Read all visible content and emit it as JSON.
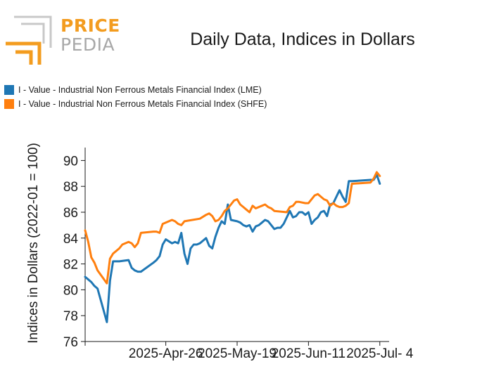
{
  "logo": {
    "word1": "PRICE",
    "word2": "PEDIA",
    "colors": {
      "orange": "#f39c1f",
      "gray": "#c8c8c8"
    }
  },
  "chart_data": {
    "type": "line",
    "title": "Daily Data, Indices in Dollars",
    "ylabel": "Indices in Dollars (2022-01 = 100)",
    "xlabel": "",
    "ylim": [
      76,
      91
    ],
    "yticks": [
      76,
      78,
      80,
      82,
      84,
      86,
      88,
      90
    ],
    "xlim": [
      "2025-03-31",
      "2025-07-07"
    ],
    "xticks": [
      {
        "date": "2025-04-26",
        "label": "2025-Apr-26"
      },
      {
        "date": "2025-05-19",
        "label": "2025-May-19"
      },
      {
        "date": "2025-06-11",
        "label": "2025-Jun-11"
      },
      {
        "date": "2025-07-04",
        "label": "2025-Jul- 4"
      }
    ],
    "legend_position": "top-left",
    "grid": false,
    "series": [
      {
        "name": "I - Value - Industrial Non Ferrous Metals Financial Index (LME)",
        "color": "#1f77b4",
        "points": [
          [
            "2025-03-31",
            81.0
          ],
          [
            "2025-04-01",
            80.8
          ],
          [
            "2025-04-02",
            80.6
          ],
          [
            "2025-04-03",
            80.3
          ],
          [
            "2025-04-04",
            80.1
          ],
          [
            "2025-04-07",
            77.5
          ],
          [
            "2025-04-08",
            80.7
          ],
          [
            "2025-04-09",
            82.2
          ],
          [
            "2025-04-10",
            82.2
          ],
          [
            "2025-04-11",
            82.2
          ],
          [
            "2025-04-14",
            82.3
          ],
          [
            "2025-04-15",
            81.7
          ],
          [
            "2025-04-16",
            81.5
          ],
          [
            "2025-04-17",
            81.4
          ],
          [
            "2025-04-18",
            81.4
          ],
          [
            "2025-04-22",
            82.1
          ],
          [
            "2025-04-23",
            82.3
          ],
          [
            "2025-04-24",
            82.6
          ],
          [
            "2025-04-25",
            83.5
          ],
          [
            "2025-04-26",
            83.9
          ],
          [
            "2025-04-28",
            83.6
          ],
          [
            "2025-04-29",
            83.7
          ],
          [
            "2025-04-30",
            83.6
          ],
          [
            "2025-05-01",
            84.4
          ],
          [
            "2025-05-02",
            82.8
          ],
          [
            "2025-05-03",
            82.0
          ],
          [
            "2025-05-04",
            83.2
          ],
          [
            "2025-05-05",
            83.5
          ],
          [
            "2025-05-06",
            83.5
          ],
          [
            "2025-05-07",
            83.6
          ],
          [
            "2025-05-08",
            83.8
          ],
          [
            "2025-05-09",
            84.0
          ],
          [
            "2025-05-10",
            83.4
          ],
          [
            "2025-05-11",
            83.2
          ],
          [
            "2025-05-12",
            84.1
          ],
          [
            "2025-05-13",
            84.8
          ],
          [
            "2025-05-14",
            85.3
          ],
          [
            "2025-05-15",
            85.1
          ],
          [
            "2025-05-16",
            86.6
          ],
          [
            "2025-05-17",
            85.4
          ],
          [
            "2025-05-19",
            85.3
          ],
          [
            "2025-05-20",
            85.2
          ],
          [
            "2025-05-21",
            85.0
          ],
          [
            "2025-05-22",
            84.9
          ],
          [
            "2025-05-23",
            85.0
          ],
          [
            "2025-05-24",
            84.5
          ],
          [
            "2025-05-25",
            84.9
          ],
          [
            "2025-05-26",
            85.0
          ],
          [
            "2025-05-27",
            85.2
          ],
          [
            "2025-05-28",
            85.4
          ],
          [
            "2025-05-29",
            85.3
          ],
          [
            "2025-05-30",
            85.0
          ],
          [
            "2025-05-31",
            84.7
          ],
          [
            "2025-06-01",
            84.8
          ],
          [
            "2025-06-02",
            84.8
          ],
          [
            "2025-06-03",
            85.1
          ],
          [
            "2025-06-04",
            85.6
          ],
          [
            "2025-06-05",
            86.1
          ],
          [
            "2025-06-06",
            85.6
          ],
          [
            "2025-06-07",
            85.7
          ],
          [
            "2025-06-08",
            86.0
          ],
          [
            "2025-06-09",
            86.0
          ],
          [
            "2025-06-10",
            85.8
          ],
          [
            "2025-06-11",
            86.0
          ],
          [
            "2025-06-12",
            85.1
          ],
          [
            "2025-06-13",
            85.4
          ],
          [
            "2025-06-14",
            85.6
          ],
          [
            "2025-06-15",
            86.0
          ],
          [
            "2025-06-16",
            86.1
          ],
          [
            "2025-06-17",
            85.7
          ],
          [
            "2025-06-18",
            86.6
          ],
          [
            "2025-06-19",
            86.7
          ],
          [
            "2025-06-20",
            87.2
          ],
          [
            "2025-06-21",
            87.7
          ],
          [
            "2025-06-22",
            87.2
          ],
          [
            "2025-06-23",
            86.8
          ],
          [
            "2025-06-24",
            88.4
          ],
          [
            "2025-06-25",
            88.4
          ],
          [
            "2025-07-01",
            88.5
          ],
          [
            "2025-07-02",
            88.5
          ],
          [
            "2025-07-03",
            88.9
          ],
          [
            "2025-07-04",
            88.2
          ]
        ]
      },
      {
        "name": "I - Value - Industrial Non Ferrous Metals Financial Index (SHFE)",
        "color": "#ff7f0e",
        "points": [
          [
            "2025-03-31",
            84.6
          ],
          [
            "2025-04-01",
            83.7
          ],
          [
            "2025-04-02",
            82.5
          ],
          [
            "2025-04-03",
            82.1
          ],
          [
            "2025-04-04",
            81.5
          ],
          [
            "2025-04-07",
            80.5
          ],
          [
            "2025-04-08",
            82.4
          ],
          [
            "2025-04-09",
            82.8
          ],
          [
            "2025-04-10",
            83.0
          ],
          [
            "2025-04-11",
            83.2
          ],
          [
            "2025-04-12",
            83.5
          ],
          [
            "2025-04-14",
            83.7
          ],
          [
            "2025-04-15",
            83.6
          ],
          [
            "2025-04-16",
            83.3
          ],
          [
            "2025-04-17",
            83.6
          ],
          [
            "2025-04-18",
            84.4
          ],
          [
            "2025-04-22",
            84.5
          ],
          [
            "2025-04-23",
            84.5
          ],
          [
            "2025-04-24",
            84.4
          ],
          [
            "2025-04-25",
            85.1
          ],
          [
            "2025-04-26",
            85.2
          ],
          [
            "2025-04-28",
            85.4
          ],
          [
            "2025-04-29",
            85.3
          ],
          [
            "2025-04-30",
            85.1
          ],
          [
            "2025-05-01",
            85.0
          ],
          [
            "2025-05-02",
            85.3
          ],
          [
            "2025-05-07",
            85.5
          ],
          [
            "2025-05-09",
            85.8
          ],
          [
            "2025-05-10",
            85.9
          ],
          [
            "2025-05-11",
            85.7
          ],
          [
            "2025-05-12",
            85.3
          ],
          [
            "2025-05-13",
            85.4
          ],
          [
            "2025-05-14",
            85.7
          ],
          [
            "2025-05-15",
            86.1
          ],
          [
            "2025-05-16",
            86.3
          ],
          [
            "2025-05-17",
            86.6
          ],
          [
            "2025-05-18",
            86.9
          ],
          [
            "2025-05-19",
            87.0
          ],
          [
            "2025-05-20",
            86.6
          ],
          [
            "2025-05-21",
            86.4
          ],
          [
            "2025-05-22",
            86.2
          ],
          [
            "2025-05-23",
            86.0
          ],
          [
            "2025-05-24",
            86.5
          ],
          [
            "2025-05-25",
            86.3
          ],
          [
            "2025-05-26",
            86.4
          ],
          [
            "2025-05-27",
            86.5
          ],
          [
            "2025-05-28",
            86.6
          ],
          [
            "2025-05-29",
            86.4
          ],
          [
            "2025-05-30",
            86.3
          ],
          [
            "2025-05-31",
            86.1
          ],
          [
            "2025-06-04",
            86.0
          ],
          [
            "2025-06-05",
            86.4
          ],
          [
            "2025-06-06",
            86.5
          ],
          [
            "2025-06-07",
            86.8
          ],
          [
            "2025-06-08",
            86.8
          ],
          [
            "2025-06-10",
            86.7
          ],
          [
            "2025-06-11",
            86.7
          ],
          [
            "2025-06-12",
            87.0
          ],
          [
            "2025-06-13",
            87.3
          ],
          [
            "2025-06-14",
            87.4
          ],
          [
            "2025-06-15",
            87.2
          ],
          [
            "2025-06-16",
            87.0
          ],
          [
            "2025-06-17",
            86.9
          ],
          [
            "2025-06-18",
            86.5
          ],
          [
            "2025-06-19",
            86.7
          ],
          [
            "2025-06-20",
            86.5
          ],
          [
            "2025-06-21",
            86.4
          ],
          [
            "2025-06-22",
            86.4
          ],
          [
            "2025-06-23",
            86.5
          ],
          [
            "2025-06-24",
            86.7
          ],
          [
            "2025-06-25",
            88.2
          ],
          [
            "2025-07-01",
            88.3
          ],
          [
            "2025-07-02",
            88.6
          ],
          [
            "2025-07-03",
            89.1
          ],
          [
            "2025-07-04",
            88.8
          ]
        ]
      }
    ]
  }
}
